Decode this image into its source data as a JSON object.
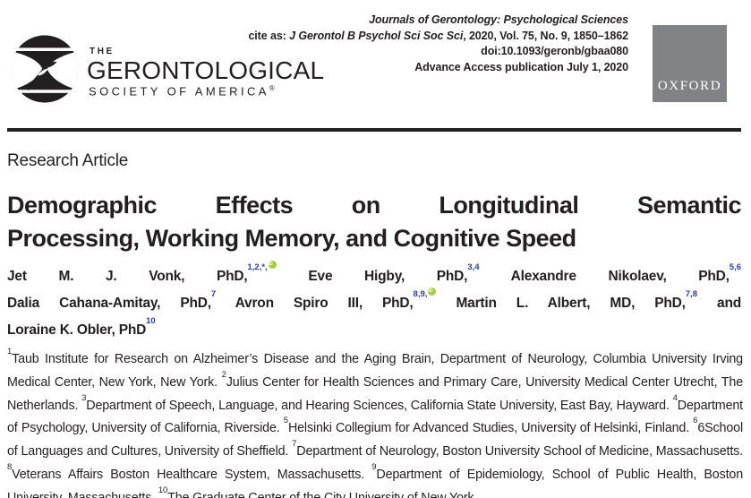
{
  "masthead": {
    "journal_line": "Journals of Gerontology: Psychological Sciences",
    "cite_prefix": "cite as: ",
    "cite_journal": "J Gerontol B Psychol Sci Soc Sci",
    "cite_suffix": ", 2020, Vol. 75, No. 9, 1850–1862",
    "doi_line": "doi:10.1093/geronb/gbaa080",
    "advance_line": "Advance Access publication July 1, 2020",
    "publisher": "OXFORD",
    "publisher_bg": "#818285",
    "logo": {
      "the": "THE",
      "name": "GERONTOLOGICAL",
      "subtitle": "SOCIETY OF AMERICA",
      "reg": "®",
      "mark": "hourglass-icon"
    }
  },
  "article": {
    "kicker": "Research Article",
    "title_line1": "Demographic Effects on Longitudinal Semantic",
    "title_line2": "Processing, Working Memory, and Cognitive Speed",
    "authors": {
      "sup_color": "#2b3cae",
      "orcid_color": "#a6ce39",
      "lines": [
        {
          "justify": true,
          "segments": [
            {
              "text": "Jet M. J. Vonk, PhD,",
              "sup": "1,2,*,",
              "orcid": true
            },
            {
              "text": "Eve Higby, PhD,",
              "sup": "3,4",
              "orcid": false
            },
            {
              "text": "Alexandre Nikolaev, PhD,",
              "sup": "5,6",
              "orcid": false
            }
          ]
        },
        {
          "justify": true,
          "segments": [
            {
              "text": "Dalia Cahana-Amitay, PhD,",
              "sup": "7",
              "orcid": false
            },
            {
              "text": "Avron Spiro III, PhD,",
              "sup": "8,9,",
              "orcid": true
            },
            {
              "text": "Martin L. Albert, MD, PhD,",
              "sup": "7,8",
              "orcid": false
            },
            {
              "text": "and",
              "sup": "",
              "orcid": false
            }
          ]
        },
        {
          "justify": false,
          "segments": [
            {
              "text": "Loraine K. Obler, PhD",
              "sup": "10",
              "orcid": false
            }
          ]
        }
      ]
    },
    "affiliations": [
      {
        "sup": "1",
        "text": "Taub Institute for Research on Alzheimer’s Disease and the Aging Brain, Department of Neurology, Columbia University Irving Medical Center, New York, New York. "
      },
      {
        "sup": "2",
        "text": "Julius Center for Health Sciences and Primary Care, University Medical Center Utrecht, The Netherlands. "
      },
      {
        "sup": "3",
        "text": "Department of Speech, Language, and Hearing Sciences, California State University, East Bay, Hayward. "
      },
      {
        "sup": "4",
        "text": "Department of Psychology, University of California, Riverside. "
      },
      {
        "sup": "5",
        "text": "Helsinki Collegium for Advanced Studies, University of Helsinki, Finland. "
      },
      {
        "sup": "6",
        "text": "6School of Languages and Cultures, University of Sheffield. "
      },
      {
        "sup": "7",
        "text": "Department of Neurology, Boston University School of Medicine, Massachusetts. "
      },
      {
        "sup": "8",
        "text": "Veterans Affairs Boston Healthcare System, Massachusetts. "
      },
      {
        "sup": "9",
        "text": "Department of Epidemiology, School of Public Health, Boston University, Massachusetts. "
      },
      {
        "sup": "10",
        "text": "The Graduate Center of the City University of New York."
      }
    ]
  }
}
